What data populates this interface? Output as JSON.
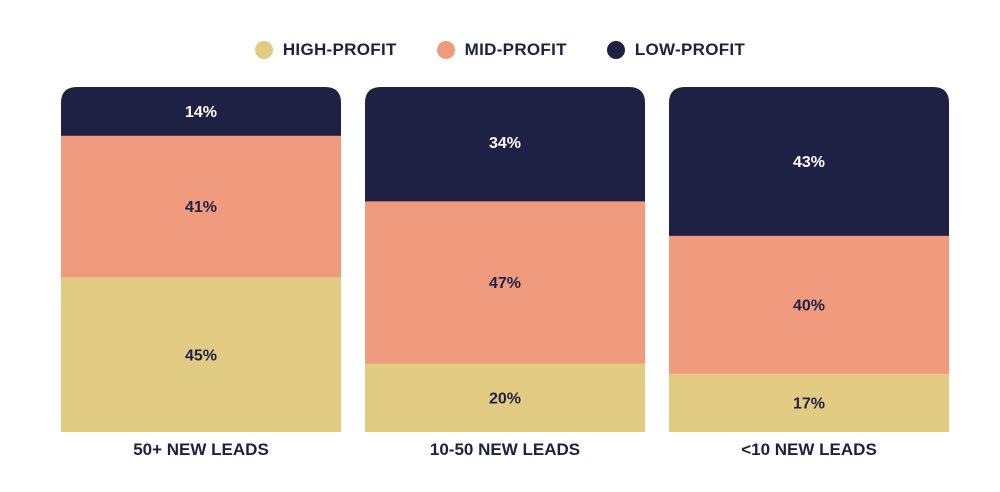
{
  "chart_data": {
    "type": "bar",
    "stacked": true,
    "percent": true,
    "legend_position": "top-center",
    "categories": [
      "50+ NEW LEADS",
      "10-50 NEW LEADS",
      "<10 NEW LEADS"
    ],
    "series": [
      {
        "name": "HIGH-PROFIT",
        "color": "#e2cb82",
        "text_color": "#1e2144",
        "values": [
          45,
          20,
          17
        ]
      },
      {
        "name": "MID-PROFIT",
        "color": "#f09b7e",
        "text_color": "#1e2144",
        "values": [
          41,
          47,
          40
        ]
      },
      {
        "name": "LOW-PROFIT",
        "color": "#1e2144",
        "text_color": "#ffffff",
        "values": [
          14,
          34,
          43
        ]
      }
    ],
    "ylim": [
      0,
      100
    ],
    "value_suffix": "%"
  }
}
